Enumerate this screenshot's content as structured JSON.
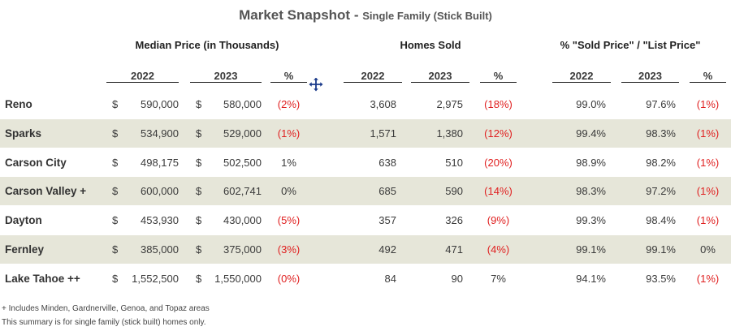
{
  "title": {
    "main": "Market Snapshot",
    "separator": " - ",
    "subtitle": "Single Family (Stick Built)"
  },
  "groups": {
    "median_price": "Median Price (in Thousands)",
    "homes_sold": "Homes Sold",
    "sold_list": "% \"Sold Price\" / \"List Price\""
  },
  "columns": {
    "year1": "2022",
    "year2": "2023",
    "pct": "%"
  },
  "currency_symbol": "$",
  "rows": [
    {
      "city": "Reno",
      "price_2022": "590,000",
      "price_2023": "580,000",
      "price_pct": "(2%)",
      "sold_2022": "3,608",
      "sold_2023": "2,975",
      "sold_pct": "(18%)",
      "ratio_2022": "99.0%",
      "ratio_2023": "97.6%",
      "ratio_pct": "(1%)"
    },
    {
      "city": "Sparks",
      "price_2022": "534,900",
      "price_2023": "529,000",
      "price_pct": "(1%)",
      "sold_2022": "1,571",
      "sold_2023": "1,380",
      "sold_pct": "(12%)",
      "ratio_2022": "99.4%",
      "ratio_2023": "98.3%",
      "ratio_pct": "(1%)"
    },
    {
      "city": "Carson City",
      "price_2022": "498,175",
      "price_2023": "502,500",
      "price_pct": "1%",
      "sold_2022": "638",
      "sold_2023": "510",
      "sold_pct": "(20%)",
      "ratio_2022": "98.9%",
      "ratio_2023": "98.2%",
      "ratio_pct": "(1%)"
    },
    {
      "city": "Carson Valley +",
      "price_2022": "600,000",
      "price_2023": "602,741",
      "price_pct": "0%",
      "sold_2022": "685",
      "sold_2023": "590",
      "sold_pct": "(14%)",
      "ratio_2022": "98.3%",
      "ratio_2023": "97.2%",
      "ratio_pct": "(1%)"
    },
    {
      "city": "Dayton",
      "price_2022": "453,930",
      "price_2023": "430,000",
      "price_pct": "(5%)",
      "sold_2022": "357",
      "sold_2023": "326",
      "sold_pct": "(9%)",
      "ratio_2022": "99.3%",
      "ratio_2023": "98.4%",
      "ratio_pct": "(1%)"
    },
    {
      "city": "Fernley",
      "price_2022": "385,000",
      "price_2023": "375,000",
      "price_pct": "(3%)",
      "sold_2022": "492",
      "sold_2023": "471",
      "sold_pct": "(4%)",
      "ratio_2022": "99.1%",
      "ratio_2023": "99.1%",
      "ratio_pct": "0%"
    },
    {
      "city": "Lake Tahoe ++",
      "price_2022": "1,552,500",
      "price_2023": "1,550,000",
      "price_pct": "(0%)",
      "sold_2022": "84",
      "sold_2023": "90",
      "sold_pct": "7%",
      "ratio_2022": "94.1%",
      "ratio_2023": "93.5%",
      "ratio_pct": "(1%)"
    }
  ],
  "notes": [
    "+ Includes Minden, Gardnerville, Genoa, and Topaz areas",
    "This summary is for single family (stick built) homes only."
  ],
  "negative_color": "#e02020",
  "shade_color": "#e6e6d9",
  "icons": {
    "move": "move-cursor-icon"
  }
}
